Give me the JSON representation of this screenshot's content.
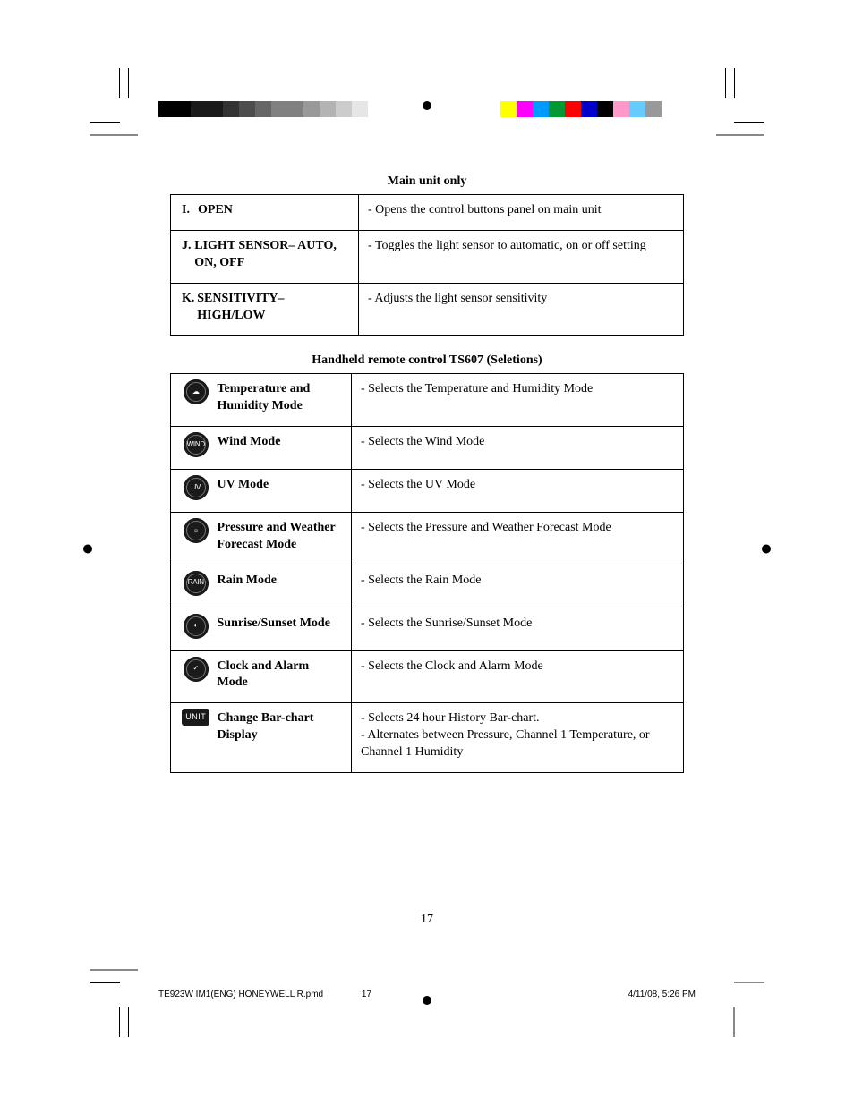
{
  "colors": {
    "gray_bar": [
      "#000000",
      "#000000",
      "#1a1a1a",
      "#1a1a1a",
      "#333333",
      "#4d4d4d",
      "#666666",
      "#808080",
      "#808080",
      "#999999",
      "#b3b3b3",
      "#cccccc",
      "#e6e6e6",
      "#ffffff"
    ],
    "cmyk_bar": [
      "#ffffff",
      "#ffff00",
      "#ff00ff",
      "#0099ff",
      "#009933",
      "#ff0000",
      "#0000cc",
      "#000000",
      "#ff99cc",
      "#66ccff",
      "#999999"
    ]
  },
  "section1": {
    "title": "Main unit only",
    "rows": [
      {
        "letter": "I.",
        "label": "OPEN",
        "desc": "- Opens the control buttons panel on main unit"
      },
      {
        "letter": "J.",
        "label": "LIGHT SENSOR– AUTO, ON, OFF",
        "desc": "- Toggles the light sensor to automatic, on or off setting"
      },
      {
        "letter": "K.",
        "label": "SENSITIVITY– HIGH/LOW",
        "desc": "- Adjusts the light sensor sensitivity"
      }
    ]
  },
  "section2": {
    "title": "Handheld remote control TS607 (Seletions)",
    "rows": [
      {
        "icon": "temp-humidity-icon",
        "glyph": "☁",
        "label": "Temperature and Humidity Mode",
        "desc": "- Selects the Temperature and Humidity Mode"
      },
      {
        "icon": "wind-icon",
        "glyph": "WIND",
        "label": "Wind Mode",
        "desc": "- Selects the Wind Mode"
      },
      {
        "icon": "uv-icon",
        "glyph": "UV",
        "label": "UV Mode",
        "desc": "- Selects the UV Mode"
      },
      {
        "icon": "pressure-icon",
        "glyph": "☼",
        "label": "Pressure and Weather Forecast Mode",
        "desc": "- Selects the Pressure and Weather Forecast Mode"
      },
      {
        "icon": "rain-icon",
        "glyph": "RAIN",
        "label": "Rain Mode",
        "desc": "- Selects the Rain Mode"
      },
      {
        "icon": "sun-icon",
        "glyph": "◐",
        "label": "Sunrise/Sunset Mode",
        "desc": "- Selects the Sunrise/Sunset Mode"
      },
      {
        "icon": "clock-icon",
        "glyph": "✓",
        "label": "Clock and Alarm Mode",
        "desc": "- Selects the Clock and Alarm Mode"
      },
      {
        "icon": "unit-icon",
        "glyph": "UNIT",
        "label": "Change Bar-chart Display",
        "desc": "- Selects 24 hour History Bar-chart.\n- Alternates between Pressure, Channel 1 Temperature, or Channel 1 Humidity"
      }
    ]
  },
  "page_number": "17",
  "footer": {
    "filename": "TE923W IM1(ENG) HONEYWELL R.pmd",
    "page": "17",
    "datetime": "4/11/08, 5:26 PM"
  }
}
